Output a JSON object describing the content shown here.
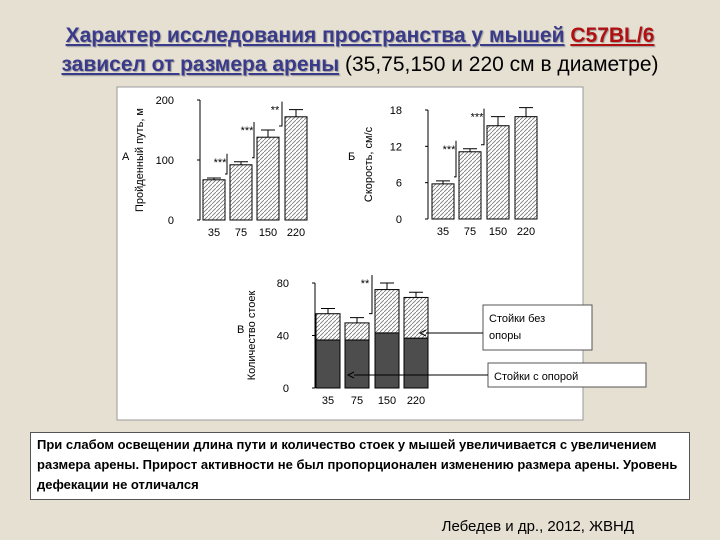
{
  "slide": {
    "title_part1": "Характер исследования пространства у мышей",
    "title_strain": "C57BL/6",
    "title_part2": "зависел от размера арены",
    "title_note": "(35,75,150 и 220 см в диаметре)",
    "caption": "При слабом освещении длина пути и количество стоек у мышей увеличивается с увеличением размера арены. Прирост активности не был пропорционален изменению размера арены. Уровень дефекации не отличался",
    "citation": "Лебедев и др., 2012, ЖВНД"
  },
  "chart_data": [
    {
      "type": "bar",
      "panel": "А",
      "ylabel": "Пройденный путь, м",
      "categories": [
        "35",
        "75",
        "150",
        "220"
      ],
      "values": [
        67,
        92,
        138,
        172
      ],
      "errors": [
        3,
        5,
        12,
        12
      ],
      "annotations": [
        "***",
        "***",
        "**"
      ],
      "ylim": [
        0,
        200
      ],
      "yticks": [
        0,
        100,
        200
      ]
    },
    {
      "type": "bar",
      "panel": "Б",
      "ylabel": "Скорость, см/с",
      "categories": [
        "35",
        "75",
        "150",
        "220"
      ],
      "values": [
        5.8,
        11.1,
        15.4,
        16.9
      ],
      "errors": [
        0.5,
        0.5,
        1.5,
        1.5
      ],
      "annotations": [
        "***",
        "***"
      ],
      "ylim": [
        0,
        18
      ],
      "yticks": [
        0,
        6,
        12,
        18
      ]
    },
    {
      "type": "stacked-bar",
      "panel": "В",
      "ylabel": "Количество стоек",
      "categories": [
        "35",
        "75",
        "150",
        "220"
      ],
      "series": [
        {
          "name": "Стойки с опорой",
          "color": "#4d4d4d",
          "values": [
            36.6,
            36.6,
            42,
            38
          ]
        },
        {
          "name": "Стойки без опоры",
          "values": [
            20,
            13,
            33,
            31
          ],
          "errors": [
            4,
            4,
            5,
            4
          ]
        }
      ],
      "annotations": [
        "**"
      ],
      "ylim": [
        0,
        80
      ],
      "yticks": [
        0,
        40,
        80
      ]
    }
  ]
}
